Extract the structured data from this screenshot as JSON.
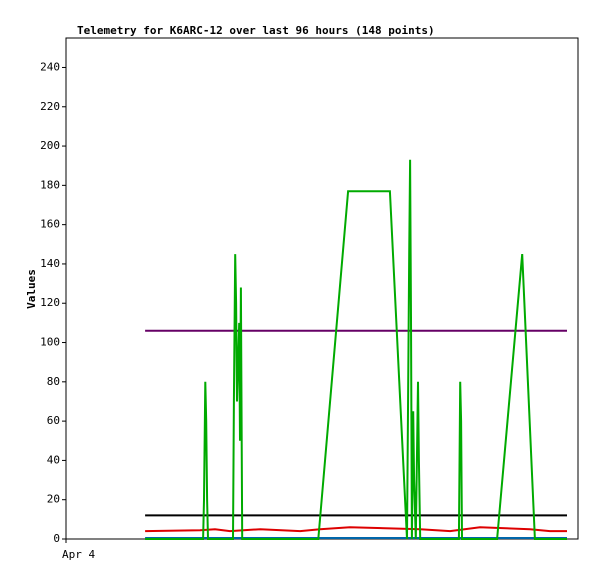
{
  "chart_data": {
    "type": "line",
    "title": "Telemetry for K6ARC-12 over last 96 hours (148 points)",
    "y_label": "Values",
    "xlim": [
      0,
      116.5
    ],
    "xticks": [
      {
        "value": 0,
        "label": "Apr 4"
      }
    ],
    "ylim": [
      0,
      255
    ],
    "yticks": [
      0,
      20,
      40,
      60,
      80,
      100,
      120,
      140,
      160,
      180,
      200,
      220,
      240
    ],
    "series": [
      {
        "color": "#0066aa",
        "x": [
          18,
          114
        ],
        "values": [
          0.5,
          0.5
        ]
      },
      {
        "color": "#dd0000",
        "x": [
          18,
          30.5,
          33.9,
          37.3,
          44.2,
          53.3,
          57.8,
          64.6,
          80.6,
          87.4,
          94.2,
          105.6,
          110.1,
          114
        ],
        "values": [
          4,
          4.5,
          5,
          4,
          5,
          4,
          5,
          6,
          5,
          4,
          6,
          5,
          4,
          4
        ]
      },
      {
        "color": "#000000",
        "x": [
          18,
          114
        ],
        "values": [
          12,
          12
        ]
      },
      {
        "color": "#660066",
        "x": [
          18,
          114
        ],
        "values": [
          106,
          106
        ]
      },
      {
        "color": "#00aa00",
        "x": [
          18,
          31.2,
          31.4,
          31.7,
          31.9,
          32.1,
          32.3,
          38.0,
          38.2,
          38.5,
          38.7,
          38.9,
          39.4,
          39.6,
          39.8,
          40.1,
          57.4,
          64.2,
          73.7,
          77.6,
          78.1,
          78.3,
          78.5,
          78.7,
          79.0,
          79.2,
          79.6,
          80.1,
          80.3,
          80.6,
          89.4,
          89.7,
          89.9,
          90.1,
          98.1,
          103.8,
          106.7,
          114.0
        ],
        "values": [
          0,
          0,
          20,
          80,
          60,
          20,
          0,
          0,
          70,
          145,
          120,
          70,
          110,
          50,
          128,
          0,
          0,
          177,
          177,
          0,
          145,
          193,
          112,
          0,
          65,
          30,
          0,
          80,
          40,
          0,
          0,
          80,
          60,
          0,
          0,
          145,
          0,
          0
        ]
      }
    ]
  }
}
